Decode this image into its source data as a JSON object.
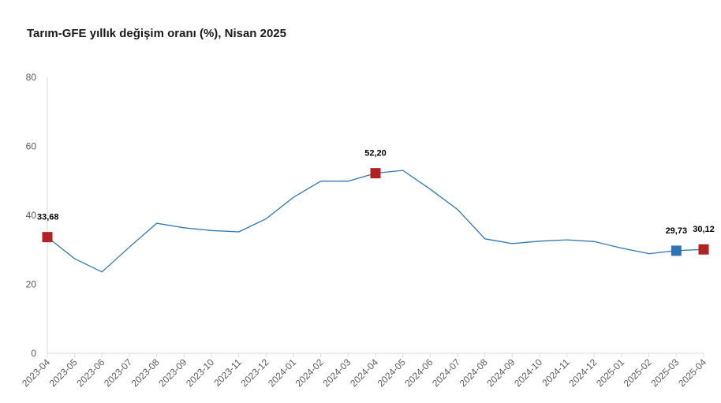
{
  "title": "Tarım-GFE yıllık değişim oranı (%), Nisan 2025",
  "chart_data": {
    "type": "line",
    "title": "Tarım-GFE yıllık değişim oranı (%), Nisan 2025",
    "xlabel": "",
    "ylabel": "",
    "ylim": [
      0,
      80
    ],
    "yticks": [
      "0",
      "20",
      "40",
      "60",
      "80"
    ],
    "grid": false,
    "categories": [
      "2023-04",
      "2023-05",
      "2023-06",
      "2023-07",
      "2023-08",
      "2023-09",
      "2023-10",
      "2023-11",
      "2023-12",
      "2024-01",
      "2024-02",
      "2024-03",
      "2024-04",
      "2024-05",
      "2024-06",
      "2024-07",
      "2024-08",
      "2024-09",
      "2024-10",
      "2024-11",
      "2024-12",
      "2025-01",
      "2025-02",
      "2025-03",
      "2025-04"
    ],
    "series": [
      {
        "color": "#2e75b6",
        "values": [
          33.68,
          27.4,
          23.6,
          30.8,
          37.7,
          36.4,
          35.6,
          35.2,
          39.0,
          45.2,
          49.9,
          49.9,
          52.2,
          53.0,
          47.6,
          41.7,
          33.2,
          31.8,
          32.5,
          32.9,
          32.4,
          30.5,
          28.9,
          29.73,
          30.12
        ]
      }
    ],
    "markers": [
      {
        "index": 0,
        "label": "33,68",
        "color": "#b22222"
      },
      {
        "index": 12,
        "label": "52,20",
        "color": "#b22222"
      },
      {
        "index": 23,
        "label": "29,73",
        "color": "#2e75b6"
      },
      {
        "index": 24,
        "label": "30,12",
        "color": "#b22222"
      }
    ]
  }
}
